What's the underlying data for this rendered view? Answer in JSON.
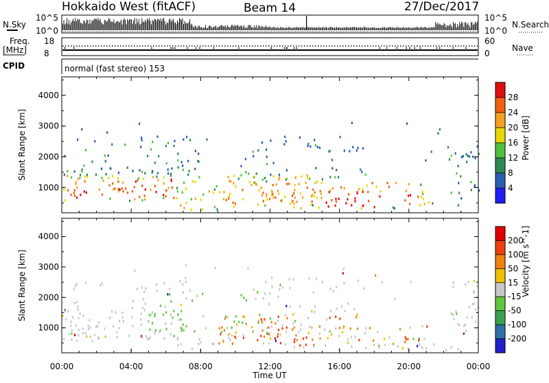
{
  "header": {
    "title": "Hokkaido West (fitACF)",
    "beam": "Beam 14",
    "date": "27/Dec/2017"
  },
  "noise_panel": {
    "left_label": "N.Sky",
    "right_label": "N.Search",
    "left_ticks": [
      "10^5",
      "10^0"
    ],
    "right_ticks": [
      "10^5",
      "10^0"
    ]
  },
  "freq_panel": {
    "left_label_1": "Freq.",
    "left_label_2": "[MHz]",
    "right_label": "Nave",
    "left_ticks": [
      "18",
      "8"
    ],
    "right_ticks": [
      "60",
      "0"
    ]
  },
  "cpid_panel": {
    "label": "CPID",
    "text": "normal (fast stereo) 153"
  },
  "chart_data": [
    {
      "type": "heatmap",
      "name": "power",
      "ylabel": "Slant Range [km]",
      "ylim": [
        180,
        4600
      ],
      "yticks": [
        "1000",
        "2000",
        "3000",
        "4000"
      ],
      "colorbar_label": "Power [dB]",
      "colorbar_ticks": [
        "4",
        "8",
        "12",
        "16",
        "20",
        "24",
        "28"
      ],
      "colorbar_colors": [
        "#1e1ef5",
        "#2a5fb0",
        "#2e8a50",
        "#4fc03c",
        "#e8d800",
        "#f4a020",
        "#f06010",
        "#e01010"
      ]
    },
    {
      "type": "heatmap",
      "name": "velocity",
      "ylabel": "Slant Range [km]",
      "ylim": [
        180,
        4600
      ],
      "yticks": [
        "1000",
        "2000",
        "3000",
        "4000"
      ],
      "colorbar_label": "Velocity [m s^-1]",
      "colorbar_ticks": [
        "200",
        "100",
        "50",
        "15",
        "-15",
        "-50",
        "-100",
        "-200"
      ],
      "colorbar_colors": [
        "#2020c8",
        "#2e6fa8",
        "#3aa050",
        "#60c840",
        "#c8c8c8",
        "#f0c000",
        "#f08010",
        "#f04010",
        "#e00000"
      ]
    }
  ],
  "xaxis": {
    "label": "Time UT",
    "ticks": [
      "00:00",
      "04:00",
      "08:00",
      "12:00",
      "16:00",
      "20:00",
      "00:00"
    ]
  }
}
